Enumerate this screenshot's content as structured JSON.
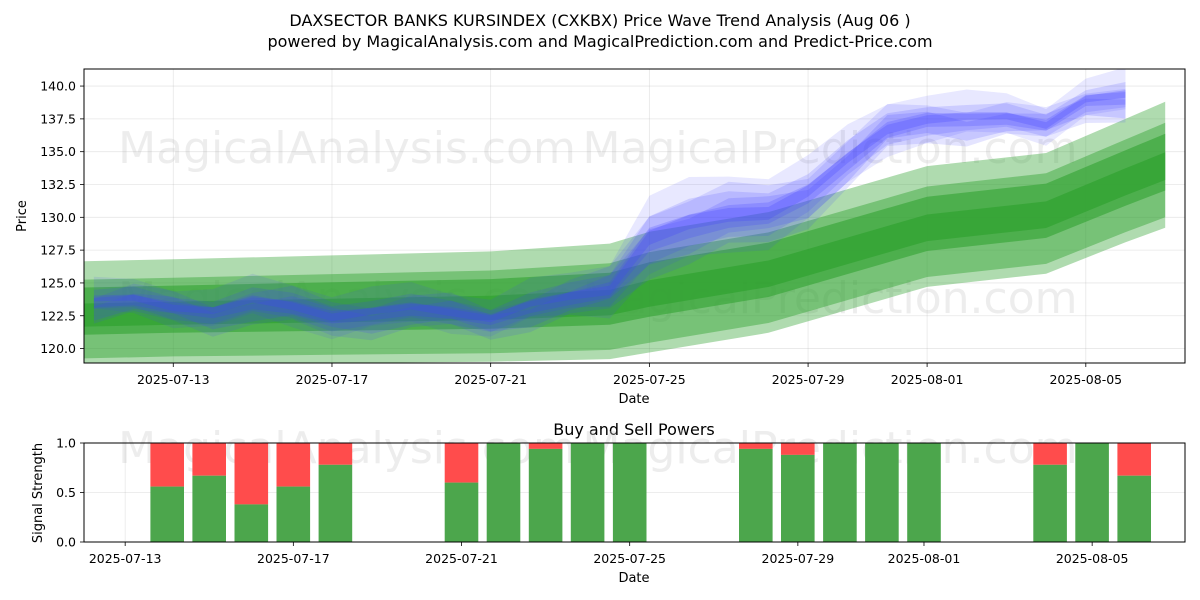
{
  "chart_data": [
    {
      "type": "area",
      "title": "DAXSECTOR BANKS KURSINDEX (CXKBX) Price Wave Trend Analysis (Aug 06 )",
      "subtitle": "powered by MagicalAnalysis.com and MagicalPrediction.com and Predict-Price.com",
      "xlabel": "Date",
      "ylabel": "Price",
      "ylim": [
        118.9,
        141.3
      ],
      "xlim": [
        "2025-07-10T18:00",
        "2025-08-07T12:00"
      ],
      "grid": true,
      "watermarks": [
        "MagicalAnalysis.com",
        "MagicalPrediction.com"
      ],
      "x_ticks": [
        "2025-07-13",
        "2025-07-17",
        "2025-07-21",
        "2025-07-25",
        "2025-07-29",
        "2025-08-01",
        "2025-08-05"
      ],
      "y_ticks": [
        120.0,
        122.5,
        125.0,
        127.5,
        130.0,
        132.5,
        135.0,
        137.5,
        140.0
      ],
      "colors": {
        "actual": "#4040ff",
        "prediction": "#2ca02c"
      },
      "series": [
        {
          "name": "actual price bands (blue)",
          "dates": [
            "2025-07-11",
            "2025-07-12",
            "2025-07-13",
            "2025-07-14",
            "2025-07-15",
            "2025-07-16",
            "2025-07-17",
            "2025-07-18",
            "2025-07-19",
            "2025-07-20",
            "2025-07-21",
            "2025-07-22",
            "2025-07-23",
            "2025-07-24",
            "2025-07-25",
            "2025-07-26",
            "2025-07-27",
            "2025-07-28",
            "2025-07-29",
            "2025-07-30",
            "2025-07-31",
            "2025-08-01",
            "2025-08-02",
            "2025-08-03",
            "2025-08-04",
            "2025-08-05",
            "2025-08-06"
          ],
          "values": [
            123.5,
            123.4,
            123.2,
            123.0,
            123.3,
            122.9,
            122.6,
            122.8,
            122.7,
            122.6,
            122.5,
            123.2,
            123.5,
            124.5,
            128.6,
            129.2,
            129.8,
            130.5,
            132.0,
            134.0,
            136.5,
            137.7,
            137.5,
            137.2,
            137.0,
            139.2,
            139.0
          ],
          "band_widths": [
            1.2,
            1.3,
            1.4,
            1.4,
            1.5,
            1.6,
            1.6,
            1.5,
            1.5,
            1.5,
            1.4,
            1.5,
            1.6,
            2.0,
            3.0,
            3.0,
            2.9,
            2.7,
            2.4,
            2.2,
            2.0,
            1.8,
            1.6,
            1.5,
            1.4,
            1.4,
            1.6
          ]
        },
        {
          "name": "prediction bands (green)",
          "dates": [
            "2025-07-10",
            "2025-07-13",
            "2025-07-17",
            "2025-07-21",
            "2025-07-24",
            "2025-07-25",
            "2025-07-28",
            "2025-08-01",
            "2025-08-04",
            "2025-08-06",
            "2025-08-07"
          ],
          "values": [
            122.6,
            122.8,
            123.0,
            123.2,
            123.6,
            124.3,
            125.8,
            129.3,
            130.3,
            132.8,
            134.0
          ],
          "band_widths": [
            4.0,
            4.0,
            4.1,
            4.2,
            4.4,
            4.6,
            4.6,
            4.6,
            4.6,
            4.7,
            4.8
          ]
        }
      ]
    },
    {
      "type": "bar",
      "title": "Buy and Sell Powers",
      "xlabel": "Date",
      "ylabel": "Signal Strength",
      "ylim": [
        0.0,
        1.0
      ],
      "y_ticks": [
        "0.0",
        "0.5",
        "1.0"
      ],
      "x_ticks": [
        "2025-07-13",
        "2025-07-17",
        "2025-07-21",
        "2025-07-25",
        "2025-07-29",
        "2025-08-01",
        "2025-08-05"
      ],
      "colors": {
        "buy": "#4ca64c",
        "sell": "#ff4c4c"
      },
      "bars": [
        {
          "date": "2025-07-14",
          "buy": 0.56
        },
        {
          "date": "2025-07-15",
          "buy": 0.67
        },
        {
          "date": "2025-07-16",
          "buy": 0.38
        },
        {
          "date": "2025-07-17",
          "buy": 0.56
        },
        {
          "date": "2025-07-18",
          "buy": 0.78
        },
        {
          "date": "2025-07-21",
          "buy": 0.6
        },
        {
          "date": "2025-07-22",
          "buy": 1.0
        },
        {
          "date": "2025-07-23",
          "buy": 0.94
        },
        {
          "date": "2025-07-24",
          "buy": 1.0
        },
        {
          "date": "2025-07-25",
          "buy": 1.0
        },
        {
          "date": "2025-07-28",
          "buy": 0.94
        },
        {
          "date": "2025-07-29",
          "buy": 0.88
        },
        {
          "date": "2025-07-30",
          "buy": 1.0
        },
        {
          "date": "2025-07-31",
          "buy": 1.0
        },
        {
          "date": "2025-08-01",
          "buy": 1.0
        },
        {
          "date": "2025-08-04",
          "buy": 0.78
        },
        {
          "date": "2025-08-05",
          "buy": 1.0
        },
        {
          "date": "2025-08-06",
          "buy": 0.67
        }
      ]
    }
  ]
}
